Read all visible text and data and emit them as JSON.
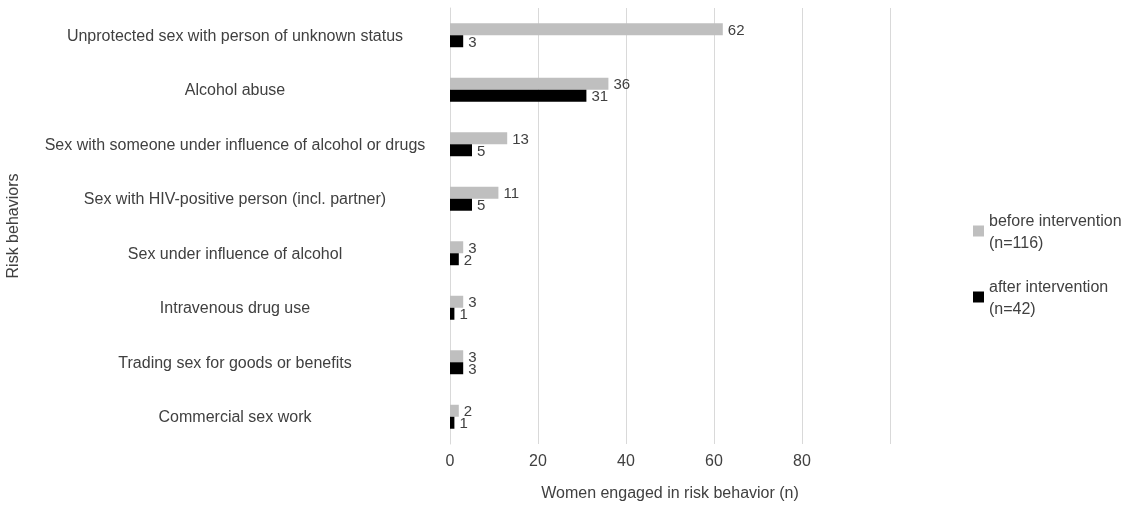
{
  "chart_data": {
    "type": "bar",
    "orientation": "horizontal",
    "xlabel": "Women engaged in risk behavior (n)",
    "ylabel": "Risk behaviors",
    "categories": [
      "Unprotected sex with person of unknown status",
      "Alcohol abuse",
      "Sex with someone under influence of alcohol or drugs",
      "Sex with HIV-positive person (incl. partner)",
      "Sex under influence of alcohol",
      "Intravenous drug use",
      "Trading sex for goods or benefits",
      "Commercial sex work"
    ],
    "series": [
      {
        "name": "before intervention (n=116)",
        "color": "#bfbfbf",
        "values": [
          62,
          36,
          13,
          11,
          3,
          3,
          3,
          2
        ]
      },
      {
        "name": "after intervention (n=42)",
        "color": "#000000",
        "values": [
          3,
          31,
          5,
          5,
          2,
          1,
          3,
          1
        ]
      }
    ],
    "xlim": [
      0,
      100
    ],
    "xticks": [
      0,
      20,
      40,
      60,
      80,
      {
        "value": 100,
        "label": null
      }
    ],
    "grid": "x",
    "legend": "right",
    "data_labels": true
  }
}
